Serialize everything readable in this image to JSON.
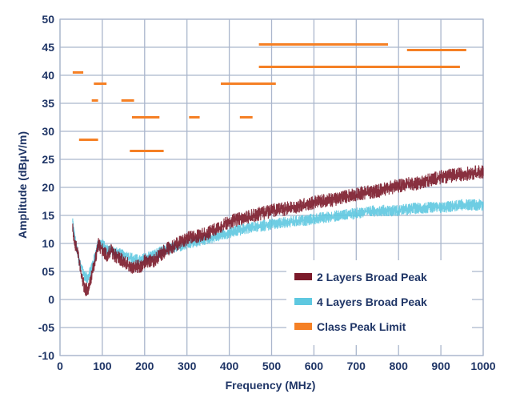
{
  "chart_data": {
    "type": "line",
    "xlabel": "Frequency (MHz)",
    "ylabel": "Amplitude (dBµV/m)",
    "xlim": [
      0,
      1000
    ],
    "ylim": [
      -10,
      50
    ],
    "grid": true,
    "legend_position": "bottom-right",
    "x_ticks": [
      "0",
      "100",
      "200",
      "300",
      "400",
      "500",
      "600",
      "700",
      "800",
      "900",
      "1000"
    ],
    "y_ticks": [
      "50",
      "45",
      "40",
      "35",
      "30",
      "25",
      "20",
      "15",
      "10",
      "05",
      "0",
      "-05",
      "-10"
    ],
    "colors": {
      "series_2layer": "#7b1a2a",
      "series_4layer": "#5ec8e0",
      "limit": "#f58025",
      "grid": "#aab6cc",
      "text": "#1f3566"
    },
    "series": [
      {
        "name": "2 Layers Broad Peak",
        "x": [
          30,
          35,
          40,
          45,
          50,
          55,
          60,
          65,
          70,
          80,
          90,
          100,
          110,
          120,
          130,
          150,
          170,
          190,
          200,
          220,
          250,
          300,
          350,
          400,
          450,
          500,
          550,
          600,
          650,
          700,
          750,
          800,
          850,
          900,
          950,
          1000
        ],
        "y": [
          13,
          10,
          9,
          7,
          5,
          3,
          2,
          2,
          3,
          6,
          10,
          9,
          8,
          9,
          8,
          7,
          6,
          6,
          7,
          7,
          9,
          11,
          12,
          14,
          15,
          16,
          16.5,
          17.5,
          18,
          19,
          19.5,
          20.5,
          21,
          22,
          22.5,
          23
        ]
      },
      {
        "name": "4 Layers Broad Peak",
        "x": [
          30,
          35,
          40,
          45,
          50,
          55,
          60,
          65,
          70,
          80,
          90,
          100,
          110,
          120,
          130,
          150,
          170,
          190,
          200,
          220,
          250,
          300,
          350,
          400,
          450,
          500,
          550,
          600,
          650,
          700,
          750,
          800,
          850,
          900,
          950,
          1000
        ],
        "y": [
          14,
          11,
          9,
          7,
          6,
          5,
          4,
          4,
          5,
          7,
          10,
          10,
          9,
          9,
          8.5,
          8,
          7.5,
          7,
          7.5,
          8,
          9,
          10,
          11,
          12,
          13,
          13.5,
          14,
          14.5,
          15,
          15.5,
          16,
          16,
          16.5,
          16.5,
          17,
          17
        ]
      },
      {
        "name": "Class Peak Limit",
        "segments": [
          {
            "x": [
              30,
              55
            ],
            "y": 40.5
          },
          {
            "x": [
              45,
              90
            ],
            "y": 28.5
          },
          {
            "x": [
              80,
              110
            ],
            "y": 38.5
          },
          {
            "x": [
              75,
              90
            ],
            "y": 35.5
          },
          {
            "x": [
              145,
              175
            ],
            "y": 35.5
          },
          {
            "x": [
              170,
              235
            ],
            "y": 32.5
          },
          {
            "x": [
              165,
              245
            ],
            "y": 26.5
          },
          {
            "x": [
              305,
              330
            ],
            "y": 32.5
          },
          {
            "x": [
              425,
              455
            ],
            "y": 32.5
          },
          {
            "x": [
              380,
              510
            ],
            "y": 38.5
          },
          {
            "x": [
              470,
              775
            ],
            "y": 45.5
          },
          {
            "x": [
              470,
              945
            ],
            "y": 41.5
          },
          {
            "x": [
              820,
              960
            ],
            "y": 44.5
          }
        ]
      }
    ]
  }
}
